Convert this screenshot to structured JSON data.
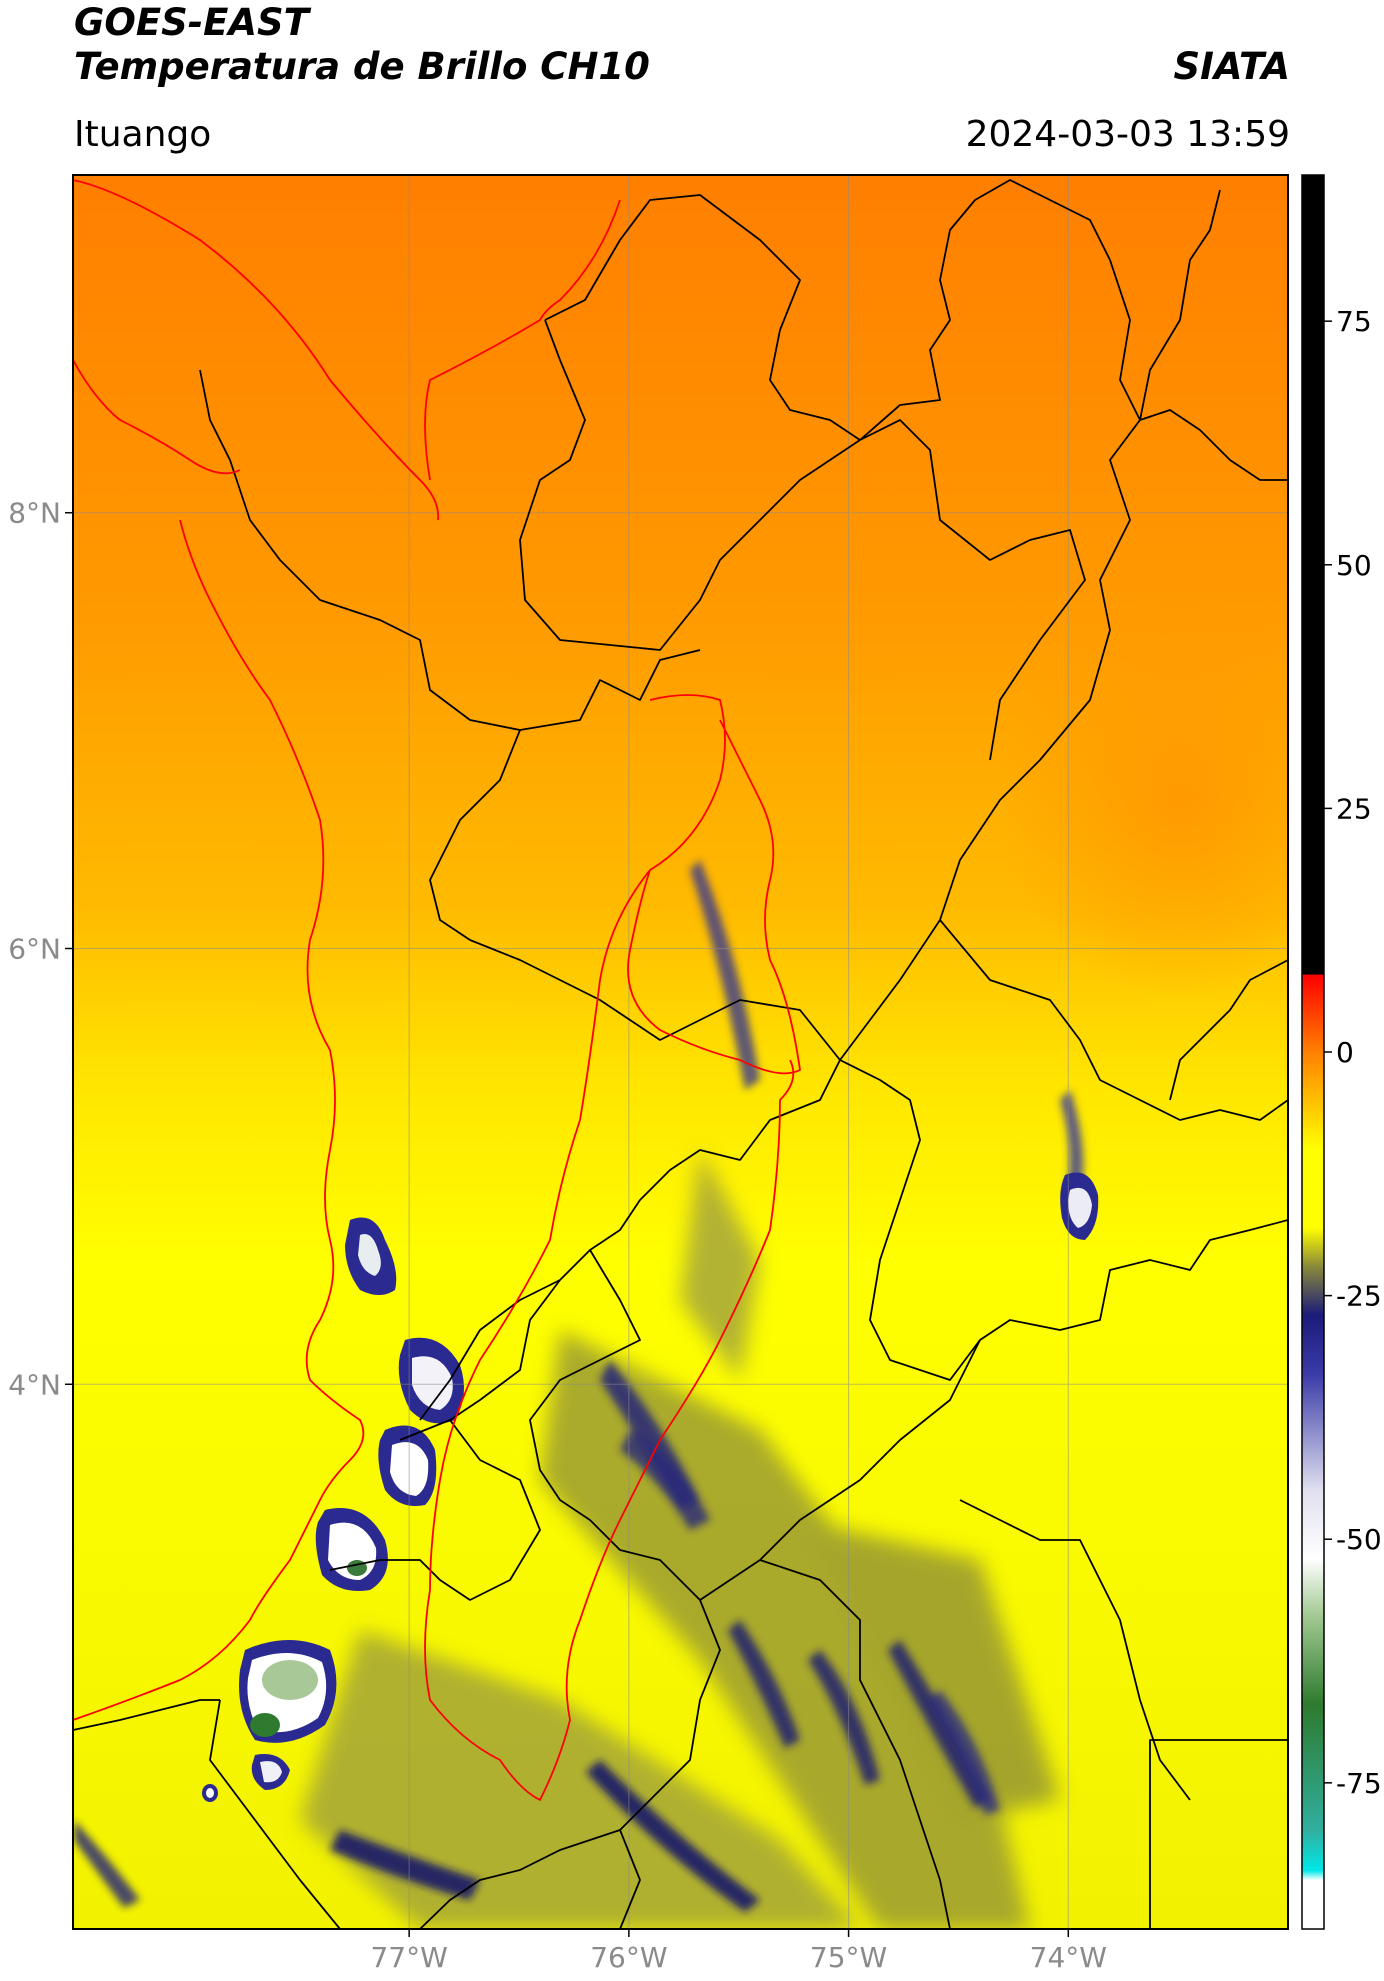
{
  "header": {
    "satellite": "GOES-EAST",
    "product": "Temperatura de Brillo CH10",
    "source": "SIATA",
    "location": "Ituango",
    "datetime": "2024-03-03 13:59"
  },
  "map": {
    "lon_ticks": [
      "77°W",
      "76°W",
      "75°W",
      "74°W"
    ],
    "lat_ticks": [
      "8°N",
      "6°N",
      "4°N"
    ],
    "lon_values": [
      -77,
      -76,
      -75,
      -74
    ],
    "lat_values": [
      8,
      6,
      4
    ],
    "extent": {
      "lon_min": -78.53,
      "lon_max": -73.0,
      "lat_min": 1.5,
      "lat_max": 9.55
    }
  },
  "colorbar": {
    "ticks": [
      "75",
      "50",
      "25",
      "0",
      "-25",
      "-50",
      "-75"
    ],
    "tick_values": [
      75,
      50,
      25,
      0,
      -25,
      -50,
      -75
    ],
    "range": [
      -90,
      90
    ],
    "stops": [
      {
        "v": 90,
        "c": "#000000"
      },
      {
        "v": 8,
        "c": "#000000"
      },
      {
        "v": 7.9,
        "c": "#ff0000"
      },
      {
        "v": 0,
        "c": "#ff8000"
      },
      {
        "v": -10,
        "c": "#ffff00"
      },
      {
        "v": -18,
        "c": "#ffff00"
      },
      {
        "v": -22,
        "c": "#8a8a3a"
      },
      {
        "v": -27,
        "c": "#1b1b7a"
      },
      {
        "v": -33,
        "c": "#3a3aa8"
      },
      {
        "v": -45,
        "c": "#e0e0f0"
      },
      {
        "v": -52,
        "c": "#ffffff"
      },
      {
        "v": -58,
        "c": "#a0c890"
      },
      {
        "v": -67,
        "c": "#2e7a2e"
      },
      {
        "v": -80,
        "c": "#30b0a0"
      },
      {
        "v": -84,
        "c": "#00e8e8"
      },
      {
        "v": -85,
        "c": "#ffffff"
      }
    ]
  }
}
